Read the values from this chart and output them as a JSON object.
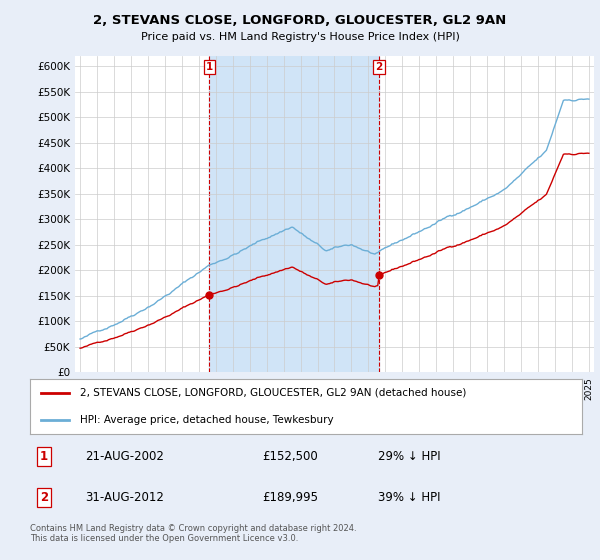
{
  "title1": "2, STEVANS CLOSE, LONGFORD, GLOUCESTER, GL2 9AN",
  "title2": "Price paid vs. HM Land Registry's House Price Index (HPI)",
  "legend_line1": "2, STEVANS CLOSE, LONGFORD, GLOUCESTER, GL2 9AN (detached house)",
  "legend_line2": "HPI: Average price, detached house, Tewkesbury",
  "footer": "Contains HM Land Registry data © Crown copyright and database right 2024.\nThis data is licensed under the Open Government Licence v3.0.",
  "sale1_label": "1",
  "sale1_date": "21-AUG-2002",
  "sale1_price": 152500,
  "sale1_price_str": "£152,500",
  "sale1_pct": "29% ↓ HPI",
  "sale1_year": 2002.625,
  "sale2_label": "2",
  "sale2_date": "31-AUG-2012",
  "sale2_price": 189995,
  "sale2_price_str": "£189,995",
  "sale2_pct": "39% ↓ HPI",
  "sale2_year": 2012.625,
  "hpi_color": "#6baed6",
  "price_color": "#cc0000",
  "shade_color": "#d0e4f7",
  "bg_color": "#e8eef8",
  "plot_bg": "#ffffff",
  "grid_color": "#cccccc",
  "ylim_min": 0,
  "ylim_max": 620000,
  "xlim_min": 1994.7,
  "xlim_max": 2025.3,
  "yticks": [
    0,
    50000,
    100000,
    150000,
    200000,
    250000,
    300000,
    350000,
    400000,
    450000,
    500000,
    550000,
    600000
  ],
  "xtick_start": 1995,
  "xtick_end": 2025,
  "hpi_seed": 42,
  "sale1_discount": 0.71,
  "sale2_discount": 0.61
}
